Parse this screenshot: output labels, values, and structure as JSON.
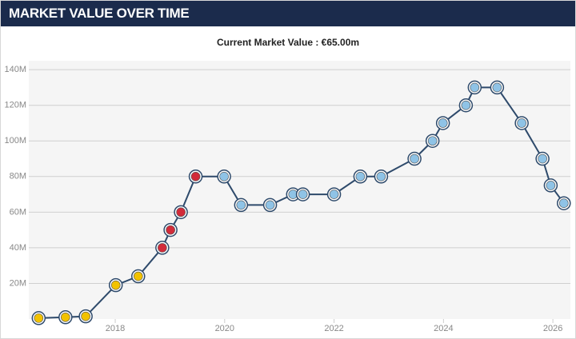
{
  "header": {
    "title": "MARKET VALUE OVER TIME"
  },
  "chart_data": {
    "type": "line",
    "title": "Current Market Value : €65.00m",
    "x": [
      2016.6,
      2017.09,
      2017.46,
      2018.01,
      2018.42,
      2018.86,
      2019.01,
      2019.2,
      2019.47,
      2019.99,
      2020.3,
      2020.83,
      2021.25,
      2021.43,
      2022.0,
      2022.48,
      2022.86,
      2023.47,
      2023.8,
      2023.99,
      2024.41,
      2024.57,
      2024.98,
      2025.43,
      2025.81,
      2025.96,
      2026.2
    ],
    "series": [
      {
        "name": "Market value",
        "color": "#2e4a6b",
        "values": [
          0.5,
          1,
          1.5,
          19,
          24,
          40,
          50,
          60,
          80,
          80,
          64,
          64,
          70,
          70,
          70,
          80,
          80,
          90,
          100,
          110,
          120,
          130,
          130,
          110,
          90,
          75,
          65
        ],
        "marker_colors": [
          "#f2c200",
          "#f2c200",
          "#f2c200",
          "#f2c200",
          "#f2c200",
          "#d22b3a",
          "#d22b3a",
          "#d22b3a",
          "#d22b3a",
          "#8fc3e6",
          "#8fc3e6",
          "#8fc3e6",
          "#8fc3e6",
          "#8fc3e6",
          "#8fc3e6",
          "#8fc3e6",
          "#8fc3e6",
          "#8fc3e6",
          "#8fc3e6",
          "#8fc3e6",
          "#8fc3e6",
          "#8fc3e6",
          "#8fc3e6",
          "#8fc3e6",
          "#8fc3e6",
          "#8fc3e6",
          "#8fc3e6"
        ]
      }
    ],
    "xlim": [
      2016.42,
      2026.32
    ],
    "xticks": [
      2018,
      2020,
      2022,
      2024,
      2026
    ],
    "ylim": [
      0,
      145
    ],
    "yticks": [
      {
        "value": 20,
        "label": "20M"
      },
      {
        "value": 40,
        "label": "40M"
      },
      {
        "value": 60,
        "label": "60M"
      },
      {
        "value": 80,
        "label": "80M"
      },
      {
        "value": 100,
        "label": "100M"
      },
      {
        "value": 120,
        "label": "120M"
      },
      {
        "value": 140,
        "label": "140M"
      }
    ],
    "grid": true
  }
}
